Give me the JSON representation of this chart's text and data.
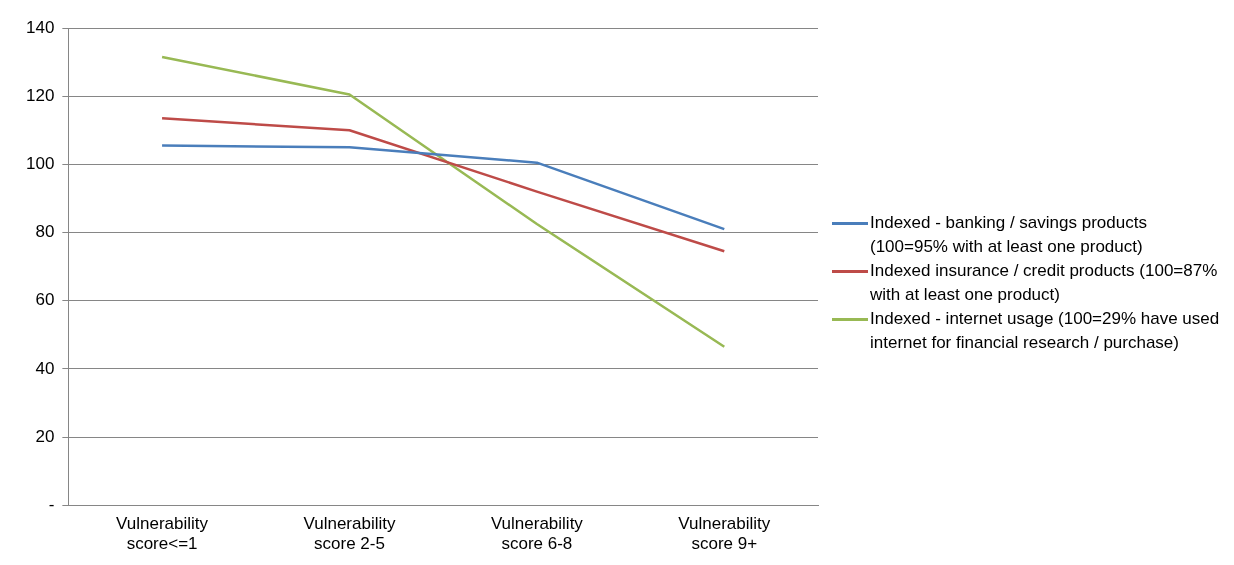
{
  "chart_data": {
    "type": "line",
    "categories": [
      "Vulnerability score<=1",
      "Vulnerability score 2-5",
      "Vulnerability score 6-8",
      "Vulnerability score 9+"
    ],
    "series": [
      {
        "name": "Indexed - banking / savings products (100=95% with at least one product)",
        "color": "#4a7ebb",
        "values": [
          105.5,
          105,
          100.5,
          81
        ]
      },
      {
        "name": "Indexed insurance / credit products (100=87% with at least one product)",
        "color": "#be4b48",
        "values": [
          113.5,
          110,
          92,
          74.5
        ]
      },
      {
        "name": "Indexed - internet usage (100=29% have used internet for financial research / purchase)",
        "color": "#98b954",
        "values": [
          131.5,
          120.5,
          82.5,
          46.5
        ]
      }
    ],
    "ylim": [
      0,
      140
    ],
    "yticks": [
      {
        "value": 0,
        "label": "-"
      },
      20,
      40,
      60,
      80,
      100,
      120,
      140
    ],
    "grid": "y",
    "legend": "right",
    "marker": "none",
    "line_style": "solid"
  }
}
